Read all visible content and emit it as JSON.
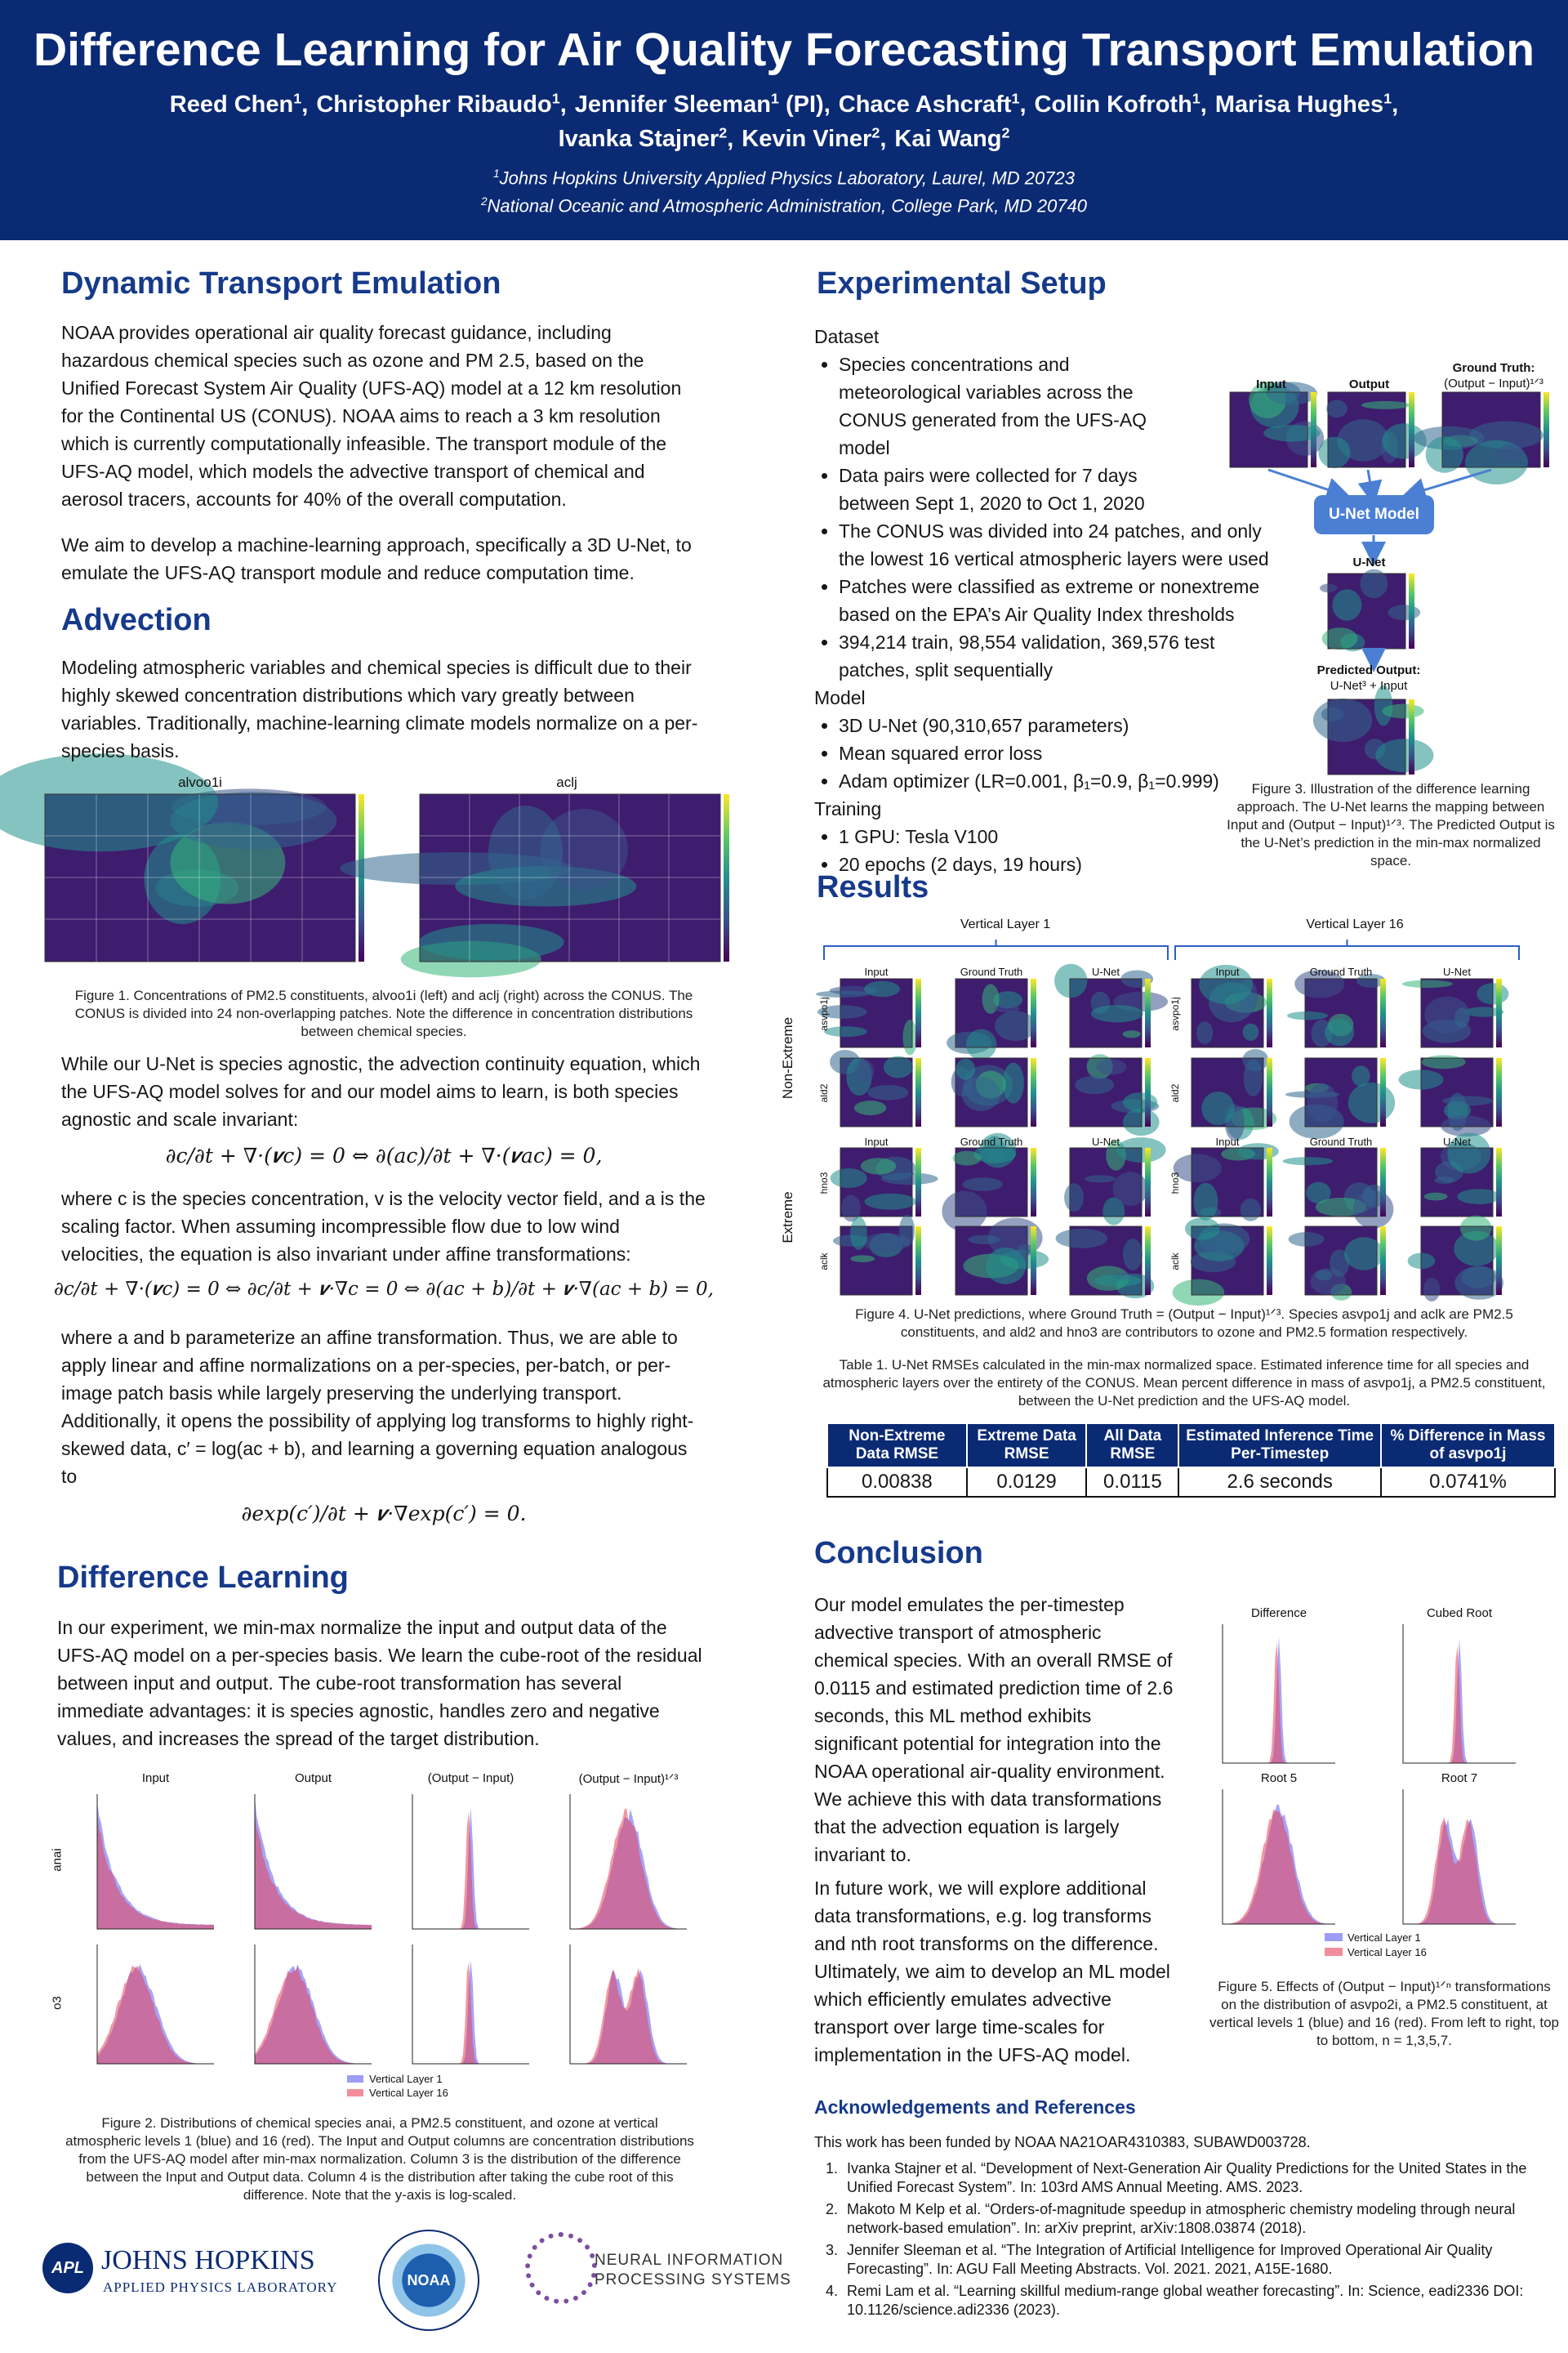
{
  "header": {
    "title": "Difference Learning for Air Quality Forecasting Transport Emulation",
    "author_lines": [
      [
        {
          "name": "Reed Chen",
          "aff": "1",
          "after": ","
        },
        {
          "name": "Christopher Ribaudo",
          "aff": "1",
          "after": ","
        },
        {
          "name": "Jennifer Sleeman",
          "aff": "1",
          "after": " (PI),"
        },
        {
          "name": "Chace Ashcraft",
          "aff": "1",
          "after": ","
        },
        {
          "name": "Collin Kofroth",
          "aff": "1",
          "after": ","
        },
        {
          "name": "Marisa Hughes",
          "aff": "1",
          "after": ","
        }
      ],
      [
        {
          "name": "Ivanka Stajner",
          "aff": "2",
          "after": ","
        },
        {
          "name": "Kevin Viner",
          "aff": "2",
          "after": ","
        },
        {
          "name": "Kai Wang",
          "aff": "2"
        }
      ]
    ],
    "affiliations": [
      {
        "sup": "1",
        "text": "Johns Hopkins University Applied Physics Laboratory, Laurel, MD 20723"
      },
      {
        "sup": "2",
        "text": "National Oceanic and Atmospheric Administration, College Park, MD 20740"
      }
    ]
  },
  "dynamic": {
    "heading": "Dynamic Transport Emulation",
    "paragraphs": [
      "NOAA provides operational air quality forecast guidance, including hazardous chemical species such as ozone and PM 2.5, based on the Unified Forecast System Air Quality (UFS-AQ) model at a 12 km resolution for the Continental US (CONUS). NOAA aims to reach a 3 km resolution which is currently computationally infeasible. The transport module of the UFS-AQ model, which models the advective transport of chemical and aerosol tracers, accounts for 40% of the overall computation.",
      "We aim to develop a machine-learning approach, specifically a 3D U-Net, to emulate the UFS-AQ transport module and reduce computation time."
    ]
  },
  "advection": {
    "heading": "Advection",
    "p1": "Modeling atmospheric variables and chemical species is difficult due to their highly skewed concentration distributions which vary greatly between variables. Traditionally, machine-learning climate models normalize on a per-species basis.",
    "figure": {
      "panels": [
        "alvoo1i",
        "aclj"
      ],
      "caption": "Figure 1. Concentrations of PM2.5 constituents, alvoo1i (left) and aclj (right) across the CONUS. The CONUS is divided into 24 non-overlapping patches. Note the difference in concentration distributions between chemical species."
    },
    "p2": "While our U-Net is species agnostic, the advection continuity equation, which the UFS-AQ model solves for and our model aims to learn, is both species agnostic and scale invariant:",
    "eq1": "∂c/∂t + ∇·(𝒗c) = 0   ⇔   ∂(ac)/∂t + ∇·(𝒗ac) = 0,",
    "p3": "where c is the species concentration, v is the velocity vector field, and a is the scaling factor. When assuming incompressible flow due to low wind velocities, the equation is also invariant under affine transformations:",
    "eq2": "∂c/∂t + ∇·(𝒗c) = 0   ⇔   ∂c/∂t + 𝒗·∇c = 0   ⇔   ∂(ac + b)/∂t + 𝒗·∇(ac + b) = 0,",
    "p4": "where a and b parameterize an affine transformation. Thus, we are able to apply linear and affine normalizations on a per-species, per-batch, or per-image patch basis while largely preserving the underlying transport. Additionally, it opens the possibility of applying log transforms to highly right-skewed data, c′ = log(ac + b), and learning a governing equation analogous to",
    "eq3": "∂exp(c′)/∂t + 𝒗·∇exp(c′) = 0."
  },
  "difference": {
    "heading": "Difference Learning",
    "paragraph": "In our experiment, we min-max normalize the input and output data of the UFS-AQ model on a per-species basis. We learn the cube-root of the residual between input and output. The cube-root transformation has several immediate advantages: it is species agnostic, handles zero and negative values, and increases the spread of the target distribution.",
    "figure": {
      "columns": [
        "Input",
        "Output",
        "(Output − Input)",
        "(Output − Input)¹ᐟ³"
      ],
      "rows": [
        "anai",
        "o3"
      ],
      "legend": [
        "Vertical Layer 1",
        "Vertical Layer 16"
      ],
      "caption": "Figure 2. Distributions of chemical species anai, a PM2.5 constituent, and ozone at vertical atmospheric levels 1 (blue) and 16 (red). The Input and Output columns are concentration distributions from the UFS-AQ model after min-max normalization. Column 3 is the distribution of the difference between the Input and Output data. Column 4 is the distribution after taking the cube root of this difference. Note that the y-axis is log-scaled."
    }
  },
  "logos": {
    "apl": "APL",
    "jhu": "JOHNS HOPKINS",
    "jhu_sub": "APPLIED PHYSICS LABORATORY",
    "noaa": "NOAA",
    "neurips": [
      "NEURAL INFORMATION",
      "PROCESSING SYSTEMS"
    ]
  },
  "setup": {
    "heading": "Experimental Setup",
    "groups": [
      {
        "label": "Dataset",
        "items": [
          "Species concentrations and meteorological variables across the CONUS generated from the UFS-AQ model",
          "Data pairs were collected for 7 days between Sept 1, 2020 to Oct 1, 2020",
          "The CONUS was divided into 24 patches, and only the lowest 16 vertical atmospheric layers were used",
          "Patches were classified as extreme or nonextreme based on the EPA’s Air Quality Index thresholds",
          "394,214 train, 98,554 validation, 369,576 test patches, split sequentially"
        ]
      },
      {
        "label": "Model",
        "items": [
          "3D U-Net (90,310,657 parameters)",
          "Mean squared error loss",
          "Adam optimizer (LR=0.001, β₁=0.9, β₁=0.999)"
        ]
      },
      {
        "label": "Training",
        "items": [
          "1 GPU: Tesla V100",
          "20 epochs (2 days, 19 hours)"
        ]
      }
    ],
    "figure": {
      "input": "Input",
      "output": "Output",
      "gt": "Ground Truth:",
      "gt_formula": "(Output − Input)¹ᐟ³",
      "model": "U-Net Model",
      "unet": "U-Net",
      "pred": "Predicted Output:",
      "pred_formula": "U-Net³ + Input",
      "caption": "Figure 3. Illustration of the difference learning approach. The U-Net learns the mapping between Input and (Output − Input)¹ᐟ³. The Predicted Output is the U-Net’s prediction in the min-max normalized space."
    }
  },
  "results": {
    "heading": "Results",
    "figure": {
      "layers": [
        "Vertical Layer 1",
        "Vertical Layer 16"
      ],
      "columns": [
        "Input",
        "Ground Truth",
        "U-Net"
      ],
      "groups": [
        "Non-Extreme",
        "Extreme"
      ],
      "species": [
        "asvpo1j",
        "ald2",
        "hno3",
        "aclk"
      ],
      "caption": "Figure 4. U-Net predictions, where Ground Truth = (Output − Input)¹ᐟ³. Species asvpo1j and aclk are PM2.5 constituents, and ald2 and hno3 are contributors to ozone and PM2.5 formation respectively."
    },
    "table": {
      "caption": "Table 1. U-Net RMSEs calculated in the min-max normalized space. Estimated inference time for all species and atmospheric layers over the entirety of the CONUS. Mean percent difference in mass of asvpo1j, a PM2.5 constituent, between the U-Net prediction and the UFS-AQ model.",
      "header": [
        "Non-Extreme Data RMSE",
        "Extreme Data RMSE",
        "All Data RMSE",
        "Estimated Inference Time Per-Timestep",
        "% Difference in Mass of asvpo1j"
      ],
      "row": [
        "0.00838",
        "0.0129",
        "0.0115",
        "2.6 seconds",
        "0.0741%"
      ]
    }
  },
  "conclusion": {
    "heading": "Conclusion",
    "paragraphs": [
      "Our model emulates the per-timestep advective transport of atmospheric chemical species. With an overall RMSE of 0.0115 and estimated prediction time of 2.6 seconds, this ML method exhibits significant potential for integration into the NOAA operational air-quality environment. We achieve this with data transformations that the advection equation is largely invariant to.",
      "In future work, we will explore additional data transformations, e.g. log transforms and nth root transforms on the difference. Ultimately, we aim to develop an ML model which efficiently emulates advective transport over large time-scales for implementation in the UFS-AQ model."
    ],
    "figure": {
      "panels": [
        "Difference",
        "Cubed Root",
        "Root 5",
        "Root 7"
      ],
      "legend": [
        "Vertical Layer 1",
        "Vertical Layer 16"
      ],
      "caption": "Figure 5. Effects of (Output − Input)¹ᐟⁿ transformations on the distribution of asvpo2i, a PM2.5 constituent, at vertical levels 1 (blue) and 16 (red). From left to right, top to bottom, n = 1,3,5,7."
    }
  },
  "acknowledgements": {
    "heading": "Acknowledgements and References",
    "funding": "This work has been funded by NOAA NA21OAR4310383, SUBAWD003728.",
    "references": [
      "Ivanka Stajner et al. “Development of Next-Generation Air Quality Predictions for the United States in the Unified Forecast System”. In: 103rd AMS Annual Meeting. AMS. 2023.",
      "Makoto M Kelp et al. “Orders-of-magnitude speedup in atmospheric chemistry modeling through neural network-based emulation”. In: arXiv preprint, arXiv:1808.03874 (2018).",
      "Jennifer Sleeman et al. “The Integration of Artificial Intelligence for Improved Operational Air Quality Forecasting”. In: AGU Fall Meeting Abstracts. Vol. 2021. 2021, A15E-1680.",
      "Remi Lam et al. “Learning skillful medium-range global weather forecasting”. In: Science, eadi2336 DOI: 10.1126/science.adi2336 (2023)."
    ]
  }
}
